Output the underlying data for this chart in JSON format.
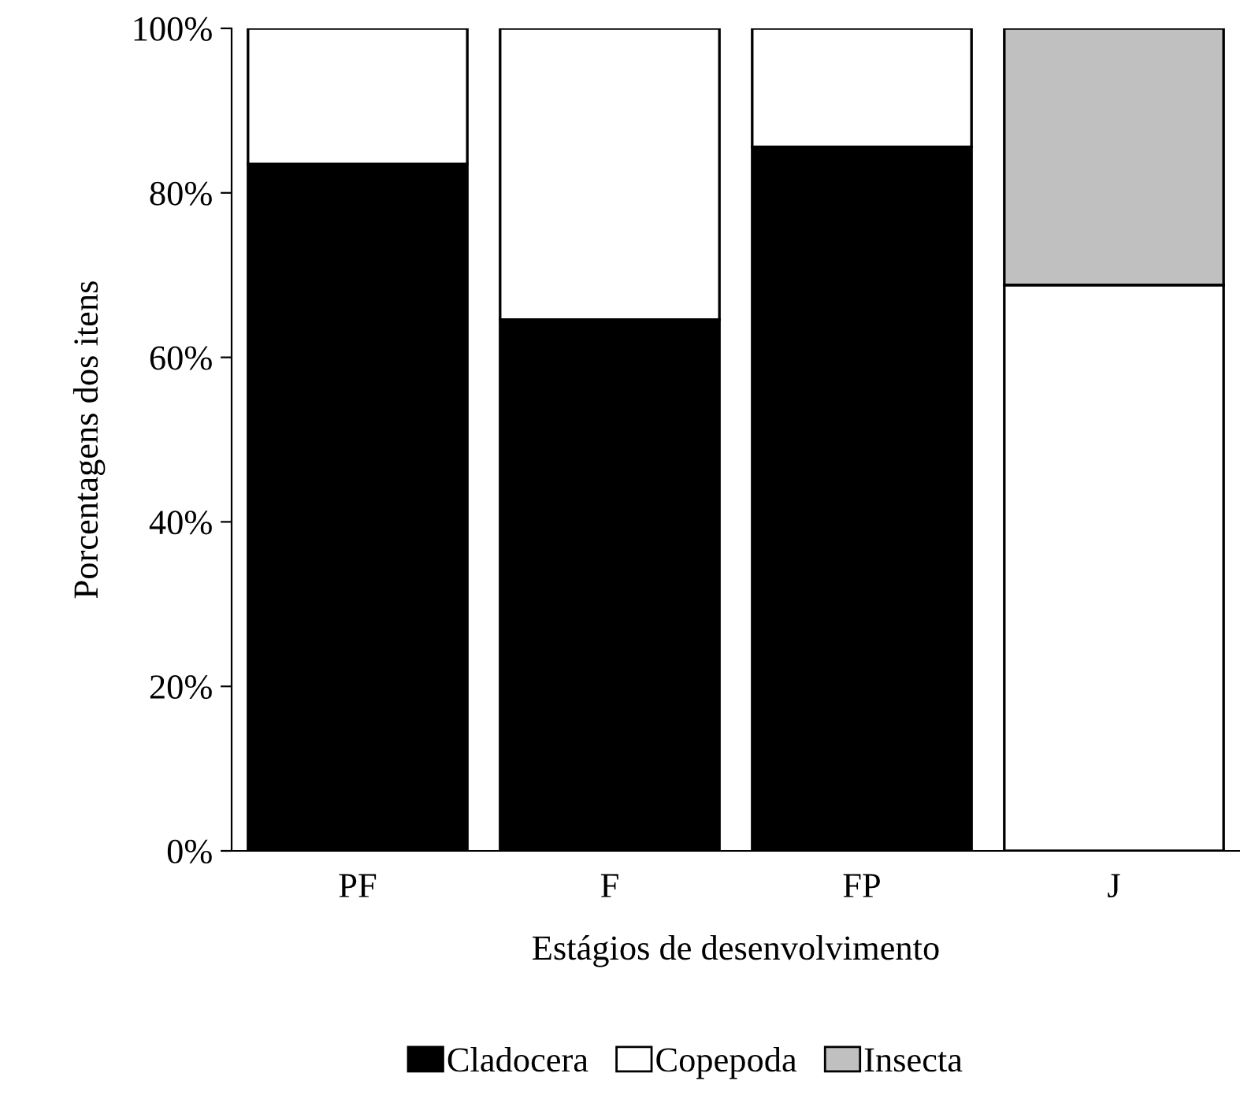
{
  "chart_data": {
    "type": "bar",
    "stacked": true,
    "xlabel": "Estágios de desenvolvimento",
    "ylabel": "Porcentagens dos itens",
    "categories": [
      "PF",
      "F",
      "FP",
      "J"
    ],
    "series": [
      {
        "name": "Cladocera",
        "color": "#000000",
        "values": [
          83.5,
          64.6,
          85.6,
          null
        ]
      },
      {
        "name": "Copepoda",
        "color": "#ffffff",
        "values": [
          16.5,
          35.4,
          14.4,
          68.8
        ]
      },
      {
        "name": "Insecta",
        "color": "#c0c0c0",
        "values": [
          null,
          null,
          null,
          31.2
        ]
      }
    ],
    "ylim": [
      0,
      100
    ],
    "yticks": [
      {
        "value": 0,
        "label": "0%"
      },
      {
        "value": 20,
        "label": "20%"
      },
      {
        "value": 40,
        "label": "40%"
      },
      {
        "value": 60,
        "label": "60%"
      },
      {
        "value": 80,
        "label": "80%"
      },
      {
        "value": 100,
        "label": "100%"
      }
    ],
    "grid": false,
    "legend": "bottom"
  }
}
